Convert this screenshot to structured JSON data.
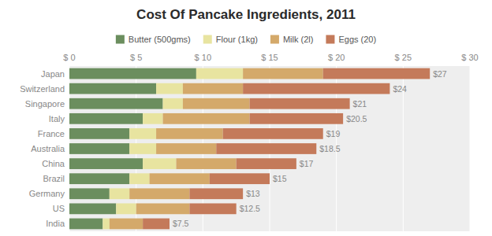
{
  "chart_data": {
    "type": "bar",
    "orientation": "horizontal",
    "stacked": true,
    "title": "Cost Of Pancake Ingredients, 2011",
    "categories": [
      "Japan",
      "Switzerland",
      "Singapore",
      "Italy",
      "France",
      "Australia",
      "China",
      "Brazil",
      "Germany",
      "US",
      "India"
    ],
    "series": [
      {
        "name": "Butter (500gms)",
        "color": "#6b8e5e",
        "values": [
          9.5,
          6.5,
          7.0,
          5.5,
          4.5,
          4.5,
          5.5,
          4.5,
          3.0,
          3.5,
          2.5
        ]
      },
      {
        "name": "Flour (1kg)",
        "color": "#e8e4a0",
        "values": [
          3.5,
          2.0,
          1.5,
          1.5,
          2.0,
          2.0,
          2.5,
          1.5,
          1.5,
          1.5,
          0.5
        ]
      },
      {
        "name": "Milk (2l)",
        "color": "#d4a96a",
        "values": [
          6.0,
          4.5,
          5.0,
          6.5,
          5.0,
          4.5,
          4.5,
          4.5,
          4.5,
          4.0,
          2.5
        ]
      },
      {
        "name": "Eggs (20)",
        "color": "#c47a5a",
        "values": [
          8.0,
          11.0,
          7.5,
          7.0,
          7.5,
          7.5,
          4.5,
          4.5,
          4.0,
          3.5,
          2.0
        ]
      }
    ],
    "totals": [
      27,
      24,
      21,
      20.5,
      19,
      18.5,
      17,
      15,
      13,
      12.5,
      7.5
    ],
    "total_labels": [
      "$27",
      "$24",
      "$21",
      "$20.5",
      "$19",
      "$18.5",
      "$17",
      "$15",
      "$13",
      "$12.5",
      "$7.5"
    ],
    "xlim": [
      0,
      30
    ],
    "xticks": [
      {
        "value": 0,
        "label": "$ 0"
      },
      {
        "value": 5,
        "label": "$ 5"
      },
      {
        "value": 10,
        "label": "$ 10"
      },
      {
        "value": 15,
        "label": "$ 15"
      },
      {
        "value": 20,
        "label": "$ 20"
      },
      {
        "value": 25,
        "label": "$ 25"
      },
      {
        "value": 30,
        "label": "$ 30"
      }
    ],
    "grid": true,
    "legend": "top"
  }
}
